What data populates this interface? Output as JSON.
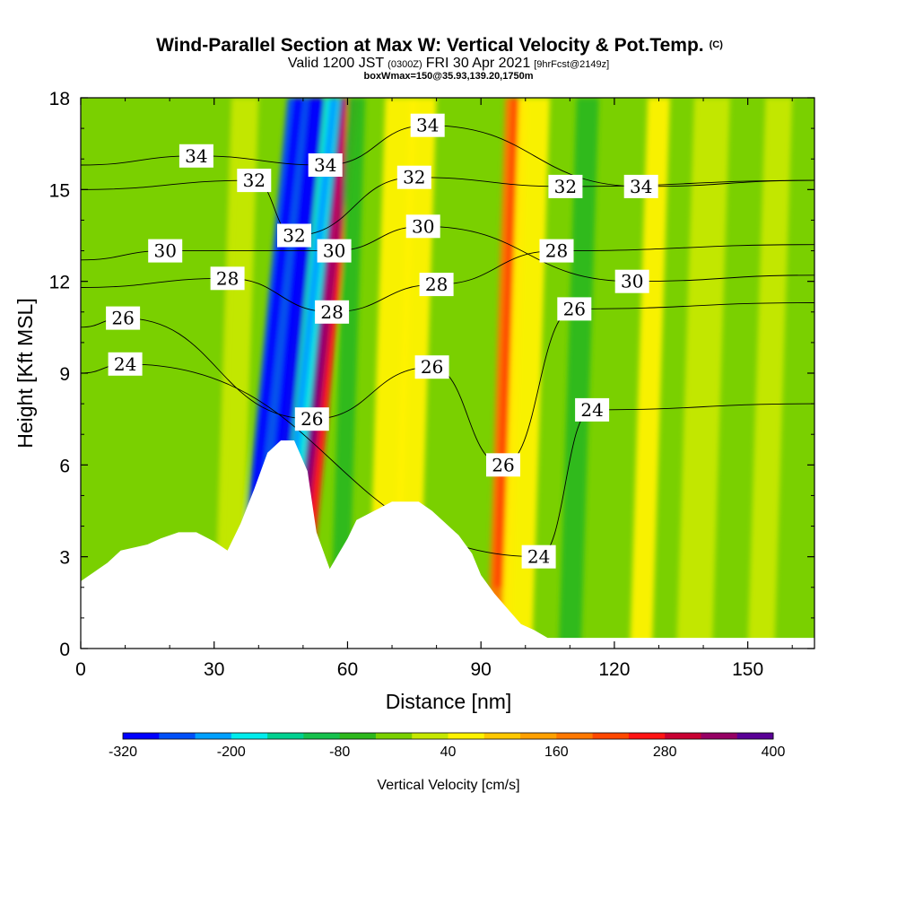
{
  "title": {
    "main": "Wind-Parallel Section at Max W: Vertical Velocity & Pot.Temp.",
    "main_suffix": "(C)",
    "sub_a": "Valid 1200 JST",
    "sub_b": "(0300Z)",
    "sub_c": "FRI 30 Apr 2021",
    "sub_d": "[9hrFcst@2149z]",
    "line3": "boxWmax=150@35.93,139.20,1750m"
  },
  "chart_data": {
    "type": "heatmap",
    "title": "Wind-Parallel Section at Max W: Vertical Velocity & Pot.Temp.",
    "xlabel": "Distance [nm]",
    "ylabel": "Height [Kft MSL]",
    "xlim": [
      0,
      165
    ],
    "ylim": [
      0,
      18
    ],
    "x_ticks": [
      "0",
      "30",
      "60",
      "90",
      "120",
      "150"
    ],
    "y_ticks": [
      "0",
      "3",
      "6",
      "9",
      "12",
      "15",
      "18"
    ],
    "colorbar": {
      "label": "Vertical Velocity [cm/s]",
      "tick_labels": [
        "-320",
        "-200",
        "-80",
        "40",
        "160",
        "280",
        "400"
      ],
      "colors": [
        "#0000ff",
        "#0050f8",
        "#00a0ff",
        "#00ecec",
        "#00d090",
        "#16c14d",
        "#2db81c",
        "#7ad000",
        "#c6e800",
        "#fff200",
        "#ffc800",
        "#ffa000",
        "#ff7800",
        "#ff4800",
        "#ff1414",
        "#c80032",
        "#960064",
        "#5a0096"
      ]
    },
    "velocity_features": [
      {
        "x": 15,
        "y": 13,
        "width": 18,
        "value": -20
      },
      {
        "x": 35,
        "y": 12,
        "width": 3,
        "value": 10
      },
      {
        "x": 43,
        "y": 16,
        "width": 2.5,
        "value": -260
      },
      {
        "x": 47,
        "y": 9,
        "width": 1.8,
        "value": -320
      },
      {
        "x": 51,
        "y": 7.5,
        "width": 2,
        "value": -170
      },
      {
        "x": 54,
        "y": 17,
        "width": 1.6,
        "value": 360
      },
      {
        "x": 55,
        "y": 10,
        "width": 1.5,
        "value": 260
      },
      {
        "x": 60,
        "y": 14,
        "width": 2,
        "value": -80
      },
      {
        "x": 70,
        "y": 16,
        "width": 3.5,
        "value": 60
      },
      {
        "x": 75,
        "y": 10,
        "width": 3,
        "value": 40
      },
      {
        "x": 96,
        "y": 9,
        "width": 2.5,
        "value": 160
      },
      {
        "x": 100,
        "y": 14,
        "width": 3.5,
        "value": 70
      },
      {
        "x": 112,
        "y": 15,
        "width": 2.5,
        "value": -80
      },
      {
        "x": 128,
        "y": 17,
        "width": 2.5,
        "value": 60
      },
      {
        "x": 140,
        "y": 6,
        "width": 4,
        "value": 20
      },
      {
        "x": 155,
        "y": 7,
        "width": 3,
        "value": 30
      }
    ],
    "potential_temperature_labels": [
      {
        "value": "34",
        "x": 26,
        "y": 16.1
      },
      {
        "value": "32",
        "x": 39,
        "y": 15.3
      },
      {
        "value": "30",
        "x": 19,
        "y": 13
      },
      {
        "value": "28",
        "x": 33,
        "y": 12.1
      },
      {
        "value": "26",
        "x": 9.5,
        "y": 10.8
      },
      {
        "value": "24",
        "x": 10,
        "y": 9.3
      },
      {
        "value": "32",
        "x": 48,
        "y": 13.5
      },
      {
        "value": "34",
        "x": 55,
        "y": 15.8
      },
      {
        "value": "30",
        "x": 57,
        "y": 13
      },
      {
        "value": "28",
        "x": 56.5,
        "y": 11
      },
      {
        "value": "26",
        "x": 52,
        "y": 7.5
      },
      {
        "value": "34",
        "x": 78,
        "y": 17.1
      },
      {
        "value": "32",
        "x": 75,
        "y": 15.4
      },
      {
        "value": "30",
        "x": 77,
        "y": 13.8
      },
      {
        "value": "28",
        "x": 80,
        "y": 11.9
      },
      {
        "value": "26",
        "x": 79,
        "y": 9.2
      },
      {
        "value": "26",
        "x": 95,
        "y": 6
      },
      {
        "value": "24",
        "x": 103,
        "y": 3
      },
      {
        "value": "32",
        "x": 109,
        "y": 15.1
      },
      {
        "value": "28",
        "x": 107,
        "y": 13
      },
      {
        "value": "26",
        "x": 111,
        "y": 11.1
      },
      {
        "value": "24",
        "x": 115,
        "y": 7.8
      },
      {
        "value": "34",
        "x": 126,
        "y": 15.1
      },
      {
        "value": "30",
        "x": 124,
        "y": 12
      }
    ],
    "terrain": [
      [
        0,
        2.2
      ],
      [
        3,
        2.5
      ],
      [
        6,
        2.8
      ],
      [
        9,
        3.2
      ],
      [
        15,
        3.4
      ],
      [
        18,
        3.6
      ],
      [
        22,
        3.8
      ],
      [
        26,
        3.8
      ],
      [
        30,
        3.5
      ],
      [
        33,
        3.2
      ],
      [
        36,
        4.1
      ],
      [
        39,
        5.2
      ],
      [
        42,
        6.4
      ],
      [
        45,
        6.8
      ],
      [
        48,
        6.8
      ],
      [
        51,
        5.8
      ],
      [
        53,
        3.8
      ],
      [
        56,
        2.6
      ],
      [
        58,
        3.1
      ],
      [
        60,
        3.6
      ],
      [
        62,
        4.2
      ],
      [
        66,
        4.5
      ],
      [
        70,
        4.8
      ],
      [
        76,
        4.8
      ],
      [
        79,
        4.5
      ],
      [
        82,
        4.1
      ],
      [
        85,
        3.7
      ],
      [
        88,
        3.1
      ],
      [
        90,
        2.4
      ],
      [
        93,
        1.8
      ],
      [
        96,
        1.3
      ],
      [
        99,
        0.8
      ],
      [
        102,
        0.6
      ],
      [
        105,
        0.35
      ],
      [
        165,
        0.35
      ]
    ]
  }
}
